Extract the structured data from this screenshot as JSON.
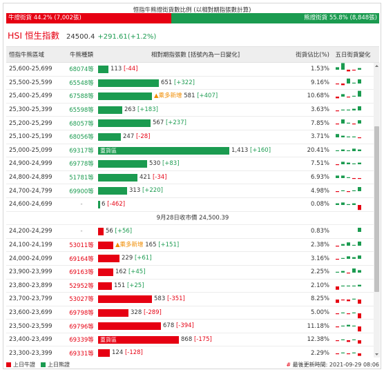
{
  "ratio": {
    "title": "恒指牛熊證街貨數比例 (以相對期指張數計算)",
    "bull_label": "牛證街貨 44.2% (7,002張)",
    "bear_label": "熊證街貨 55.8% (8,848張)",
    "bull_fraction": 0.442,
    "bull_color": "#e60012",
    "bear_color": "#1b9b50"
  },
  "index": {
    "name": "HSI 恒生指數",
    "value": "24500.4",
    "change": "+291.61(+1.2%)"
  },
  "table": {
    "headers": {
      "range": "恒指牛熊區域",
      "count": "牛熊種類",
      "bar": "相對期指張數 [括號內為一日變化]",
      "pct": "街貨佔比(%)",
      "spark": "五日街貨變化"
    },
    "max_value": 1413,
    "separator_text": "9月28日收市價 24,500.39",
    "bear_rows": [
      {
        "range": "25,600-25,699",
        "count": "68074等",
        "value": 113,
        "value_text": "113",
        "tag": "",
        "change": "[-44]",
        "pct": "1.53%",
        "spark": [
          3,
          8,
          -2,
          -1,
          2
        ]
      },
      {
        "range": "25,500-25,599",
        "count": "65548等",
        "value": 651,
        "value_text": "651",
        "tag": "",
        "change": "[+322]",
        "pct": "9.16%",
        "spark": [
          -1,
          -2,
          6,
          1,
          5
        ]
      },
      {
        "range": "25,400-25,499",
        "count": "67588等",
        "value": 581,
        "value_text": "581",
        "tag": "▲乘多新增",
        "change": "[+407]",
        "pct": "10.68%",
        "spark": [
          -2,
          3,
          -1,
          1,
          7
        ]
      },
      {
        "range": "25,300-25,399",
        "count": "65598等",
        "value": 263,
        "value_text": "263",
        "tag": "",
        "change": "[+183]",
        "pct": "3.63%",
        "spark": [
          -1,
          1,
          1,
          2,
          5
        ]
      },
      {
        "range": "25,200-25,299",
        "count": "68057等",
        "value": 567,
        "value_text": "567",
        "tag": "",
        "change": "[+237]",
        "pct": "7.85%",
        "spark": [
          -1,
          5,
          1,
          -1,
          4
        ]
      },
      {
        "range": "25,100-25,199",
        "count": "68056等",
        "value": 247,
        "value_text": "247",
        "tag": "",
        "change": "[-28]",
        "pct": "3.71%",
        "spark": [
          4,
          2,
          1,
          1,
          -1
        ]
      },
      {
        "range": "25,000-25,099",
        "count": "69317等",
        "value": 1413,
        "value_text": "1,413",
        "tag": "重貨區",
        "change": "[+160]",
        "pct": "20.41%",
        "spark": [
          1,
          2,
          1,
          3,
          2
        ]
      },
      {
        "range": "24,900-24,999",
        "count": "69778等",
        "value": 530,
        "value_text": "530",
        "tag": "",
        "change": "[+83]",
        "pct": "7.51%",
        "spark": [
          -1,
          3,
          2,
          1,
          2
        ]
      },
      {
        "range": "24,800-24,899",
        "count": "51781等",
        "value": 421,
        "value_text": "421",
        "tag": "",
        "change": "[-34]",
        "pct": "6.93%",
        "spark": [
          3,
          3,
          1,
          -1,
          -1
        ]
      },
      {
        "range": "24,700-24,799",
        "count": "69900等",
        "value": 313,
        "value_text": "313",
        "tag": "",
        "change": "[+220]",
        "pct": "4.98%",
        "spark": [
          -1,
          1,
          -1,
          1,
          5
        ]
      },
      {
        "range": "24,600-24,699",
        "count": "-",
        "value": 6,
        "value_text": "6",
        "tag": "",
        "change": "[-462]",
        "pct": "0.08%",
        "spark": [
          2,
          3,
          1,
          2,
          -6
        ]
      }
    ],
    "bull_rows": [
      {
        "range": "24,200-24,299",
        "count": "-",
        "value": 56,
        "value_text": "56",
        "tag": "",
        "change": "[+56]",
        "pct": "0.83%",
        "spark": [
          0,
          0,
          0,
          0,
          5
        ]
      },
      {
        "range": "24,100-24,199",
        "count": "53011等",
        "value": 165,
        "value_text": "165",
        "tag": "▲乘多新增",
        "change": "[+151]",
        "pct": "2.38%",
        "spark": [
          -1,
          2,
          4,
          1,
          5
        ]
      },
      {
        "range": "24,000-24,099",
        "count": "69164等",
        "value": 229,
        "value_text": "229",
        "tag": "",
        "change": "[+61]",
        "pct": "3.16%",
        "spark": [
          -1,
          1,
          3,
          2,
          4
        ]
      },
      {
        "range": "23,900-23,999",
        "count": "69163等",
        "value": 162,
        "value_text": "162",
        "tag": "",
        "change": "[+45]",
        "pct": "2.25%",
        "spark": [
          1,
          2,
          -1,
          5,
          3
        ]
      },
      {
        "range": "23,800-23,899",
        "count": "52952等",
        "value": 151,
        "value_text": "151",
        "tag": "",
        "change": "[+25]",
        "pct": "2.10%",
        "spark": [
          -4,
          1,
          1,
          1,
          2
        ]
      },
      {
        "range": "23,700-23,799",
        "count": "53027等",
        "value": 583,
        "value_text": "583",
        "tag": "",
        "change": "[-351]",
        "pct": "8.25%",
        "spark": [
          -4,
          -1,
          -2,
          1,
          -5
        ]
      },
      {
        "range": "23,600-23,699",
        "count": "69798等",
        "value": 328,
        "value_text": "328",
        "tag": "",
        "change": "[-289]",
        "pct": "5.00%",
        "spark": [
          -1,
          1,
          -1,
          1,
          -6
        ]
      },
      {
        "range": "23,500-23,599",
        "count": "69796等",
        "value": 678,
        "value_text": "678",
        "tag": "",
        "change": "[-394]",
        "pct": "11.18%",
        "spark": [
          -1,
          1,
          2,
          1,
          -6
        ]
      },
      {
        "range": "23,400-23,499",
        "count": "69339等",
        "value": 868,
        "value_text": "868",
        "tag": "重貨區",
        "change": "[-175]",
        "pct": "12.38%",
        "spark": [
          -1,
          1,
          -2,
          1,
          -4
        ]
      },
      {
        "range": "23,300-23,399",
        "count": "69331等",
        "value": 124,
        "value_text": "124",
        "tag": "",
        "change": "[-128]",
        "pct": "2.29%",
        "spark": [
          -1,
          1,
          -1,
          1,
          -3
        ]
      }
    ]
  },
  "footer": {
    "legend_bull": "上日牛證",
    "legend_bear": "上日熊證",
    "update_hash": "#",
    "update_text": "最後更新時間: 2021-09-29 08:06"
  }
}
